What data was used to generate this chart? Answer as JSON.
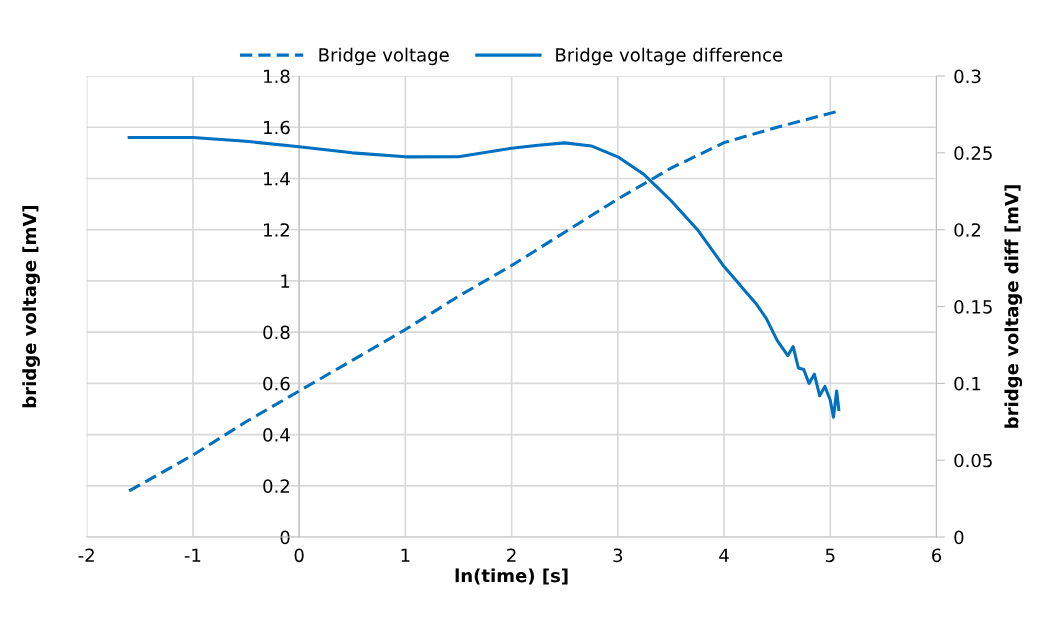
{
  "chart_data": {
    "type": "line",
    "xlabel": "ln(time) [s]",
    "ylabel": "bridge voltage [mV]",
    "y2label": "bridge voltage diff [mV]",
    "xlim": [
      -2,
      6
    ],
    "xticks": [
      -2,
      -1,
      0,
      1,
      2,
      3,
      4,
      5,
      6
    ],
    "ylim": [
      0,
      1.8
    ],
    "yticks": [
      0,
      0.2,
      0.4,
      0.6,
      0.8,
      1,
      1.2,
      1.4,
      1.6,
      1.8
    ],
    "y2lim": [
      0,
      0.3
    ],
    "y2ticks": [
      0,
      0.05,
      0.1,
      0.15,
      0.2,
      0.25,
      0.3
    ],
    "grid": true,
    "legend": "top",
    "marker": "none",
    "series": [
      {
        "name": "Bridge voltage",
        "color": "#0070c0",
        "line_style": "dashed",
        "x": [
          -1.6,
          -1,
          -0.5,
          0,
          0.5,
          1,
          1.5,
          2,
          2.5,
          3,
          3.5,
          4,
          4.5,
          5.05
        ],
        "values": [
          0.18,
          0.32,
          0.45,
          0.57,
          0.69,
          0.81,
          0.94,
          1.06,
          1.19,
          1.32,
          1.44,
          1.54,
          1.6,
          1.66
        ]
      },
      {
        "name": "Bridge voltage difference",
        "color": "#0070c0",
        "line_style": "solid",
        "axis": "y2",
        "x": [
          -1.6,
          -1,
          -0.5,
          0,
          0.5,
          1,
          1.5,
          2,
          2.25,
          2.5,
          2.75,
          3,
          3.25,
          3.5,
          3.75,
          4,
          4.1,
          4.2,
          4.3,
          4.4,
          4.5,
          4.6,
          4.65,
          4.7,
          4.75,
          4.8,
          4.85,
          4.9,
          4.95,
          5,
          5.03,
          5.06,
          5.08
        ],
        "values": [
          0.26,
          0.26,
          0.2575,
          0.254,
          0.25,
          0.2474,
          0.2475,
          0.253,
          0.255,
          0.2565,
          0.2545,
          0.2474,
          0.2357,
          0.219,
          0.2,
          0.176,
          0.168,
          0.16,
          0.152,
          0.142,
          0.128,
          0.118,
          0.124,
          0.11,
          0.109,
          0.1,
          0.106,
          0.092,
          0.098,
          0.089,
          0.078,
          0.095,
          0.083
        ]
      }
    ]
  }
}
